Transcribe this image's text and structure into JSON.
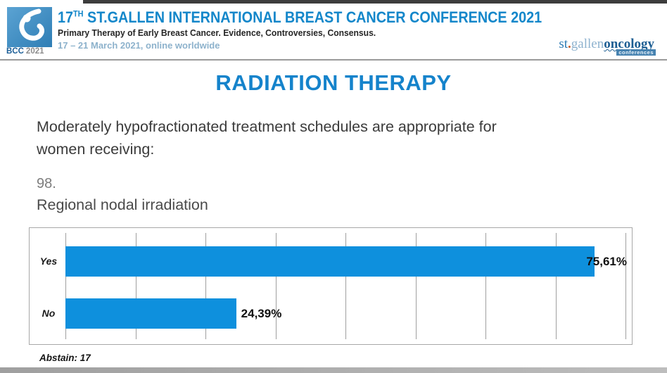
{
  "header": {
    "logo_badge": {
      "acronym": "BCC",
      "year": "2021"
    },
    "title_num": "17",
    "title_sup": "TH",
    "title_rest": " ST.GALLEN INTERNATIONAL BREAST CANCER CONFERENCE 2021",
    "subtitle": "Primary Therapy of Early Breast Cancer. Evidence, Controversies, Consensus.",
    "dates": "17 – 21 March 2021, online worldwide",
    "brand": {
      "st": "st",
      "dot": ".",
      "gallen": "gallen",
      "oncology": "oncology",
      "conferences": "conferences"
    }
  },
  "slide": {
    "section_title": "RADIATION THERAPY",
    "question_lines": [
      "Moderately hypofractionated treatment schedules are appropriate for",
      "women receiving:"
    ],
    "question_number": "98.",
    "question_item": "Regional nodal irradiation",
    "abstain": "Abstain: 17"
  },
  "chart_data": {
    "type": "bar",
    "orientation": "horizontal",
    "categories": [
      "Yes",
      "No"
    ],
    "values": [
      75.61,
      24.39
    ],
    "value_labels": [
      "75,61%",
      "24,39%"
    ],
    "title": "",
    "xlabel": "",
    "ylabel": "",
    "xlim": [
      0,
      80
    ],
    "grid_step": 10,
    "grid": true,
    "legend": false,
    "bar_color": "#0e90dd",
    "grid_color": "#9f9f9f"
  },
  "colors": {
    "accent_blue": "#1583cb",
    "header_blue": "#1487ca",
    "dates_blue": "#8db2cc",
    "bar_blue": "#0e90dd"
  }
}
